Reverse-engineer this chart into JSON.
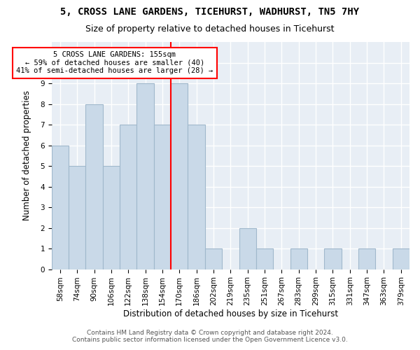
{
  "title1": "5, CROSS LANE GARDENS, TICEHURST, WADHURST, TN5 7HY",
  "title2": "Size of property relative to detached houses in Ticehurst",
  "xlabel": "Distribution of detached houses by size in Ticehurst",
  "ylabel": "Number of detached properties",
  "footnote1": "Contains HM Land Registry data © Crown copyright and database right 2024.",
  "footnote2": "Contains public sector information licensed under the Open Government Licence v3.0.",
  "categories": [
    "58sqm",
    "74sqm",
    "90sqm",
    "106sqm",
    "122sqm",
    "138sqm",
    "154sqm",
    "170sqm",
    "186sqm",
    "202sqm",
    "219sqm",
    "235sqm",
    "251sqm",
    "267sqm",
    "283sqm",
    "299sqm",
    "315sqm",
    "331sqm",
    "347sqm",
    "363sqm",
    "379sqm"
  ],
  "values": [
    6,
    5,
    8,
    5,
    7,
    9,
    7,
    9,
    7,
    1,
    0,
    2,
    1,
    0,
    1,
    0,
    1,
    0,
    1,
    0,
    1
  ],
  "bar_color": "#c9d9e8",
  "bar_edge_color": "#a0b8cc",
  "bar_linewidth": 0.8,
  "annotation_text": "5 CROSS LANE GARDENS: 155sqm\n← 59% of detached houses are smaller (40)\n41% of semi-detached houses are larger (28) →",
  "annotation_box_color": "white",
  "annotation_box_edge": "red",
  "vline_color": "red",
  "vline_x": 6.5,
  "ylim_max": 11,
  "background_color": "#e8eef5",
  "grid_color": "white",
  "title1_fontsize": 10,
  "title2_fontsize": 9,
  "xlabel_fontsize": 8.5,
  "ylabel_fontsize": 8.5,
  "tick_fontsize": 7.5,
  "footnote_fontsize": 6.5,
  "annotation_fontsize": 7.5
}
